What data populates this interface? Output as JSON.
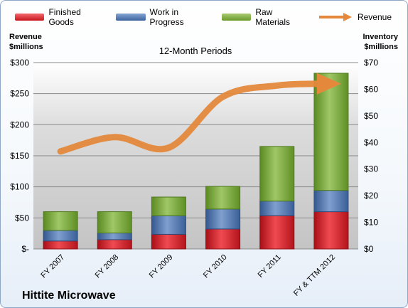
{
  "legend": {
    "finished_goods": "Finished Goods",
    "work_in_progress": "Work in Progress",
    "raw_materials": "Raw Materials",
    "revenue": "Revenue"
  },
  "axis_titles": {
    "left_line1": "Revenue",
    "left_line2": "$millions",
    "right_line1": "Inventory",
    "right_line2": "$millions"
  },
  "company": "Hittite Microwave",
  "colors": {
    "finished_goods": "#e0252d",
    "work_in_progress": "#4f79b5",
    "raw_materials": "#7fae3c",
    "revenue": "#e4893c",
    "plot_bg": "#c9c9c9"
  },
  "chart_data": {
    "type": "bar",
    "stacked": true,
    "title": "12-Month Periods",
    "categories": [
      "FY 2007",
      "FY 2008",
      "FY 2009",
      "FY 2010",
      "FY 2011",
      "FY & TTM 2012"
    ],
    "series": [
      {
        "name": "Finished Goods",
        "axis": "right",
        "values": [
          3.0,
          3.5,
          5.5,
          7.5,
          12.5,
          14.0
        ]
      },
      {
        "name": "Work in Progress",
        "axis": "right",
        "values": [
          4.0,
          2.5,
          7.0,
          7.5,
          5.5,
          8.0
        ]
      },
      {
        "name": "Raw Materials",
        "axis": "right",
        "values": [
          7.0,
          8.0,
          7.0,
          8.5,
          20.5,
          44.0
        ]
      },
      {
        "name": "Revenue",
        "axis": "left",
        "type": "line",
        "values": [
          157,
          180,
          163,
          245,
          263,
          266
        ]
      }
    ],
    "left_axis": {
      "ticks": [
        "$-",
        "$50",
        "$100",
        "$150",
        "$200",
        "$250",
        "$300"
      ],
      "ylim": [
        0,
        300
      ]
    },
    "right_axis": {
      "ticks": [
        "$0",
        "$10",
        "$20",
        "$30",
        "$40",
        "$50",
        "$60",
        "$70"
      ],
      "ylim": [
        0,
        70
      ]
    },
    "grid": true,
    "legend_position": "top"
  }
}
